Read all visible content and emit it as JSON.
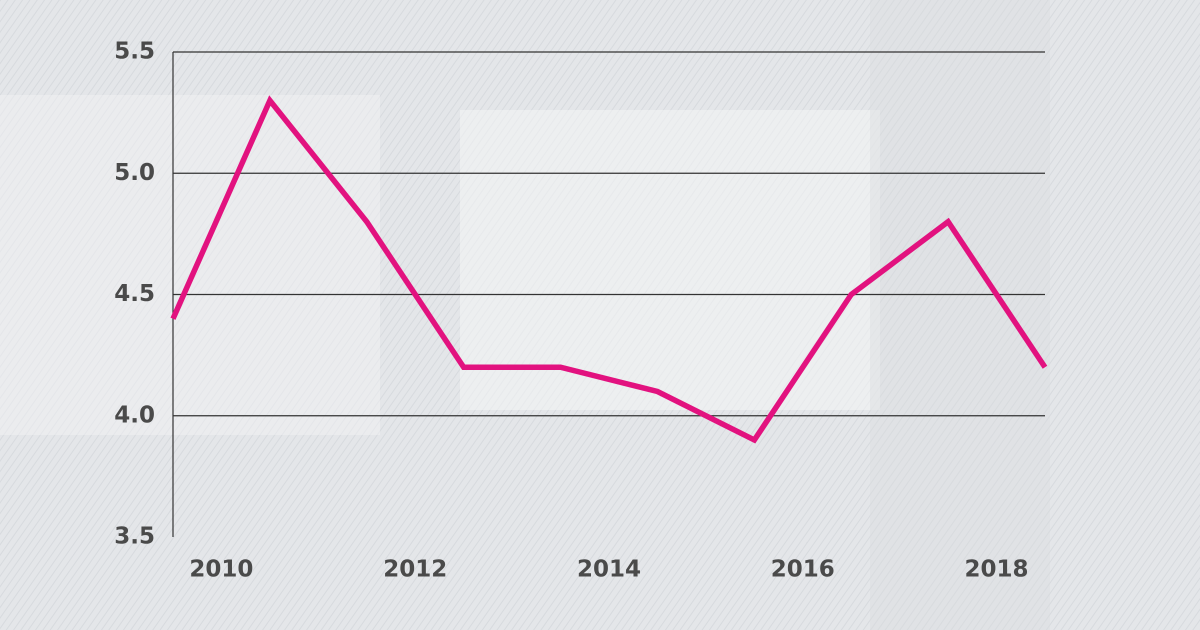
{
  "chart_data": {
    "type": "line",
    "x": [
      2009.5,
      2010.5,
      2011.5,
      2012.5,
      2013.5,
      2014.5,
      2015.5,
      2016.5,
      2017.5,
      2018.5
    ],
    "series": [
      {
        "color": "#e2127f",
        "values": [
          4.4,
          5.3,
          4.8,
          4.2,
          4.2,
          4.1,
          3.9,
          4.5,
          4.8,
          4.2
        ]
      }
    ],
    "xlim": [
      2009.5,
      2018.5
    ],
    "xticks": [
      2010,
      2012,
      2014,
      2016,
      2018
    ],
    "ylim": [
      3.5,
      5.5
    ],
    "yticks": [
      3.5,
      {
        "value": 4,
        "label": "4.0"
      },
      4.5,
      {
        "value": 5,
        "label": "5.0"
      },
      5.5
    ],
    "grid": true
  }
}
